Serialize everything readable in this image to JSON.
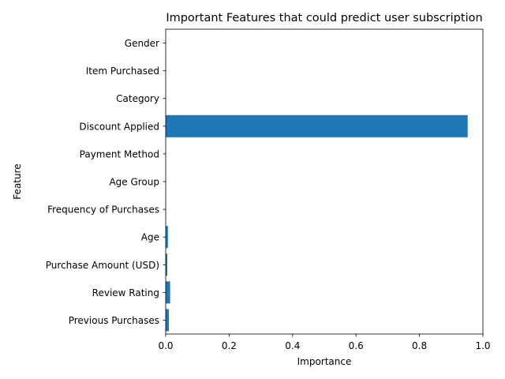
{
  "chart_data": {
    "type": "bar",
    "orientation": "horizontal",
    "title": "Important Features that could predict user subscription",
    "xlabel": "Importance",
    "ylabel": "Feature",
    "xlim": [
      0,
      1.0
    ],
    "xticks": [
      "0.0",
      "0.2",
      "0.4",
      "0.6",
      "0.8",
      "1.0"
    ],
    "grid": false,
    "bar_color": "#1f77b4",
    "categories": [
      "Gender",
      "Item Purchased",
      "Category",
      "Discount Applied",
      "Payment Method",
      "Age Group",
      "Frequency of Purchases",
      "Age",
      "Purchase Amount (USD)",
      "Review Rating",
      "Previous Purchases"
    ],
    "values": [
      0.0,
      0.0,
      0.0,
      0.952,
      0.0,
      0.0,
      0.0,
      0.007,
      0.005,
      0.014,
      0.01
    ]
  }
}
